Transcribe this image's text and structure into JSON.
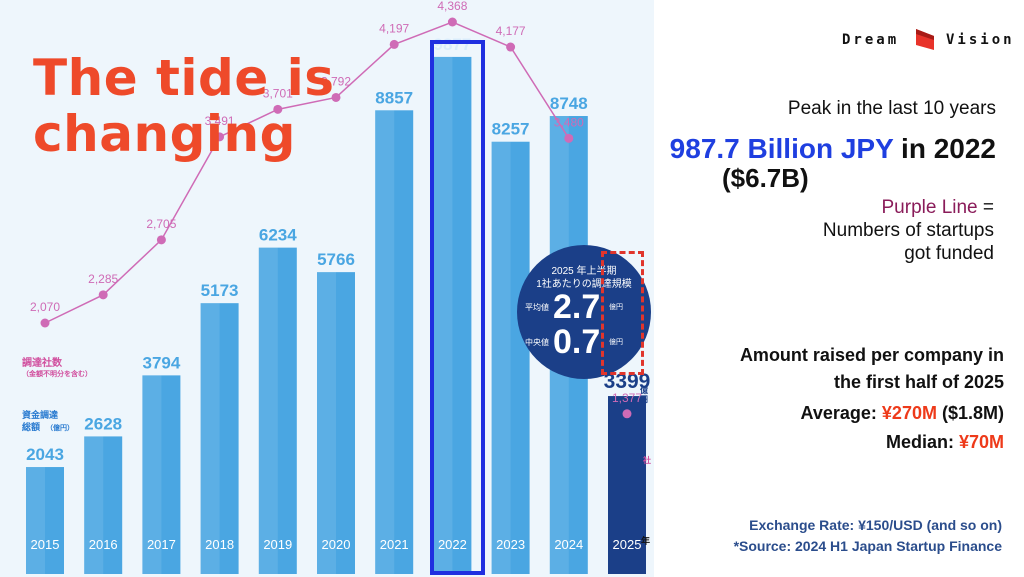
{
  "headline": "The tide is changing",
  "brand": {
    "left": "Dream",
    "right": "Vision"
  },
  "peak": {
    "label": "Peak in the last 10 years",
    "value": "987.7 Billion JPY",
    "in_year": "in 2022",
    "usd": "($6.7B)"
  },
  "purple_note": {
    "term": "Purple Line",
    "eq": " =",
    "line1": "Numbers of startups",
    "line2": "got funded"
  },
  "amount": {
    "title_line1": "Amount raised per company in",
    "title_line2": "the first half of 2025",
    "average_label": "Average: ",
    "average_value": "¥270M",
    "average_usd": "($1.8M)",
    "median_label": "Median:  ",
    "median_value": "¥70M"
  },
  "footer": {
    "exchange": "Exchange Rate: ¥150/USD (and so on)",
    "source": "*Source: 2024 H1 Japan Startup Finance"
  },
  "badge": {
    "title_line1": "2025 年上半期",
    "title_line2": "1社あたりの調達規模",
    "avg_label": "平均値",
    "avg_value": "2.7",
    "avg_unit": "億円",
    "med_label": "中央値",
    "med_value": "0.7",
    "med_unit": "億円"
  },
  "jp_labels": {
    "count_title": "調達社数",
    "count_sub": "（金額不明分を含む）",
    "amount_title_1": "資金調達",
    "amount_title_2": "総額",
    "amount_unit": "（億円）",
    "year_suffix": "年",
    "bar_unit": "億円",
    "count_unit": "社"
  },
  "colors": {
    "bar": "#4aa6e2",
    "bar_2025": "#1b3f88",
    "line": "#cf6bb6",
    "headline": "#ee4a2a",
    "highlight": "#1f2fe0"
  },
  "chart_data": {
    "type": "bar",
    "categories": [
      "2015",
      "2016",
      "2017",
      "2018",
      "2019",
      "2020",
      "2021",
      "2022",
      "2023",
      "2024",
      "2025"
    ],
    "series": [
      {
        "values": [
          2043,
          2628,
          3794,
          5173,
          6234,
          5766,
          8857,
          9877,
          8257,
          8748,
          3399
        ]
      },
      {
        "type": "line",
        "values": [
          2070,
          2285,
          2705,
          3491,
          3701,
          3792,
          4197,
          4368,
          4177,
          3480,
          1377
        ]
      }
    ],
    "value_labels": [
      "2043",
      "2628",
      "3794",
      "5173",
      "6234",
      "5766",
      "8857",
      "9877",
      "8257",
      "8748",
      "3399"
    ],
    "count_labels": [
      "2,070",
      "2,285",
      "2,705",
      "3,491",
      "3,701",
      "3,792",
      "4,197",
      "4,368",
      "4,177",
      "3,480",
      "1,377"
    ],
    "highlight_category": "2022",
    "ylim_bars": [
      0,
      10200
    ]
  }
}
